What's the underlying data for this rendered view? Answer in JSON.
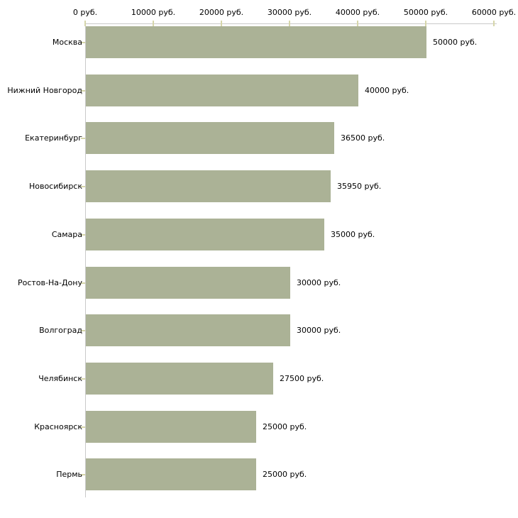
{
  "chart_data": {
    "type": "bar",
    "orientation": "horizontal",
    "title": "",
    "xlabel": "",
    "ylabel": "",
    "categories": [
      "Москва",
      "Нижний Новгород",
      "Екатеринбург",
      "Новосибирск",
      "Самара",
      "Ростов-На-Дону",
      "Волгоград",
      "Челябинск",
      "Красноярск",
      "Пермь"
    ],
    "values": [
      50000,
      40000,
      36500,
      35950,
      35000,
      30000,
      30000,
      27500,
      25000,
      25000
    ],
    "value_labels": [
      "50000 руб.",
      "40000 руб.",
      "36500 руб.",
      "35950 руб.",
      "35000 руб.",
      "30000 руб.",
      "30000 руб.",
      "27500 руб.",
      "25000 руб.",
      "25000 руб."
    ],
    "x_ticks": [
      0,
      10000,
      20000,
      30000,
      40000,
      50000,
      60000
    ],
    "x_tick_labels": [
      "0 руб.",
      "10000 руб.",
      "20000 руб.",
      "30000 руб.",
      "40000 руб.",
      "50000 руб.",
      "60000 руб."
    ],
    "xlim": [
      0,
      60000
    ],
    "grid": false,
    "legend": "none",
    "colors": {
      "bar": "#abb296",
      "axis": "#c9c9c9",
      "tick": "#d6d6aa",
      "text": "#000000",
      "background": "#ffffff"
    }
  }
}
